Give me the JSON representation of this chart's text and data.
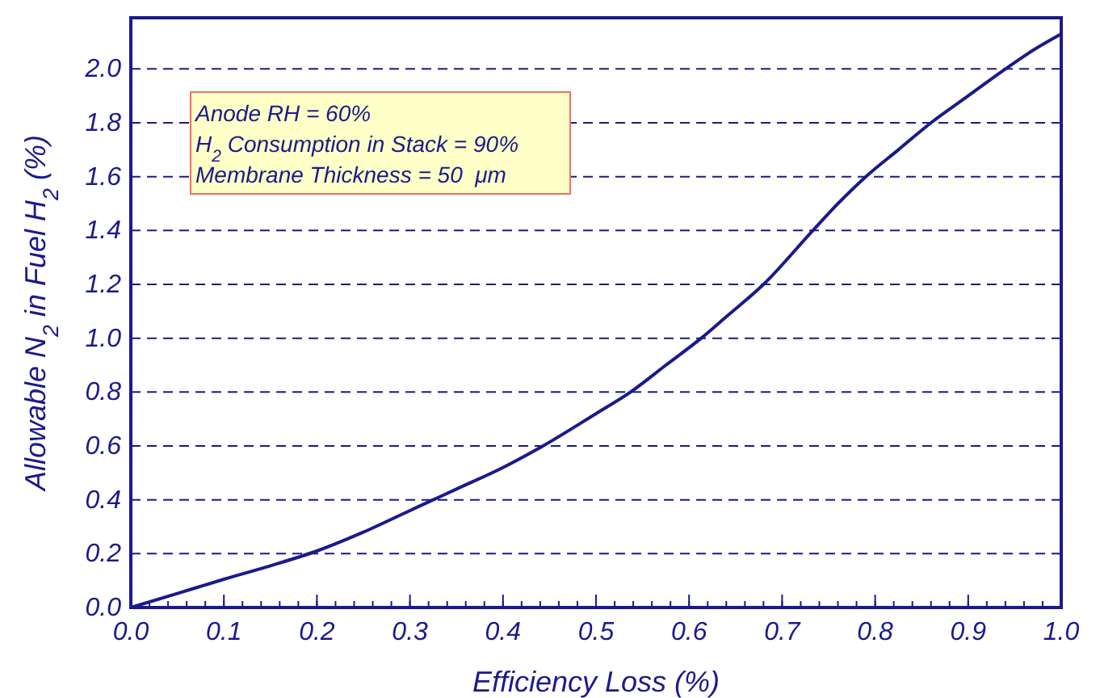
{
  "chart_data": {
    "type": "line",
    "xlabel": "Efficiency Loss (%)",
    "ylabel": "Allowable N$_{2}$ in Fuel H$_{2}$ (%)",
    "annotations": [
      "Anode RH = 60%",
      "H$_{2}$ Consumption in Stack = 90%",
      "Membrane Thickness = 50  μm"
    ],
    "x": [
      0,
      0.05,
      0.1,
      0.15,
      0.2,
      0.25,
      0.3,
      0.325,
      0.35,
      0.4,
      0.443,
      0.5,
      0.537,
      0.575,
      0.613,
      0.64,
      0.68,
      0.733,
      0.76,
      0.79,
      0.825,
      0.86,
      0.9,
      0.94,
      0.97,
      1.0
    ],
    "series": [
      {
        "color": "#1a1a8c",
        "values": [
          0,
          0.052,
          0.105,
          0.155,
          0.21,
          0.28,
          0.36,
          0.4,
          0.44,
          0.52,
          0.6,
          0.72,
          0.8,
          0.9,
          1.0,
          1.08,
          1.2,
          1.4,
          1.5,
          1.6,
          1.7,
          1.8,
          1.9,
          2.0,
          2.07,
          2.13
        ]
      }
    ],
    "xlim": [
      0,
      1.0
    ],
    "ylim": [
      0,
      2.19
    ],
    "xticks": [
      {
        "value": 0,
        "label": "0.0"
      },
      0.1,
      0.2,
      0.3,
      0.4,
      0.5,
      0.6,
      0.7,
      0.8,
      0.9,
      {
        "value": 1,
        "label": "1.0"
      }
    ],
    "yticks": [
      {
        "value": 0,
        "label": "0.0"
      },
      0.2,
      0.4,
      0.6,
      0.8,
      {
        "value": 1,
        "label": "1.0"
      },
      1.2,
      1.4,
      1.6,
      1.8,
      {
        "value": 2,
        "label": "2.0"
      }
    ],
    "grid": "y",
    "line_style": "solid",
    "marker": "none"
  }
}
